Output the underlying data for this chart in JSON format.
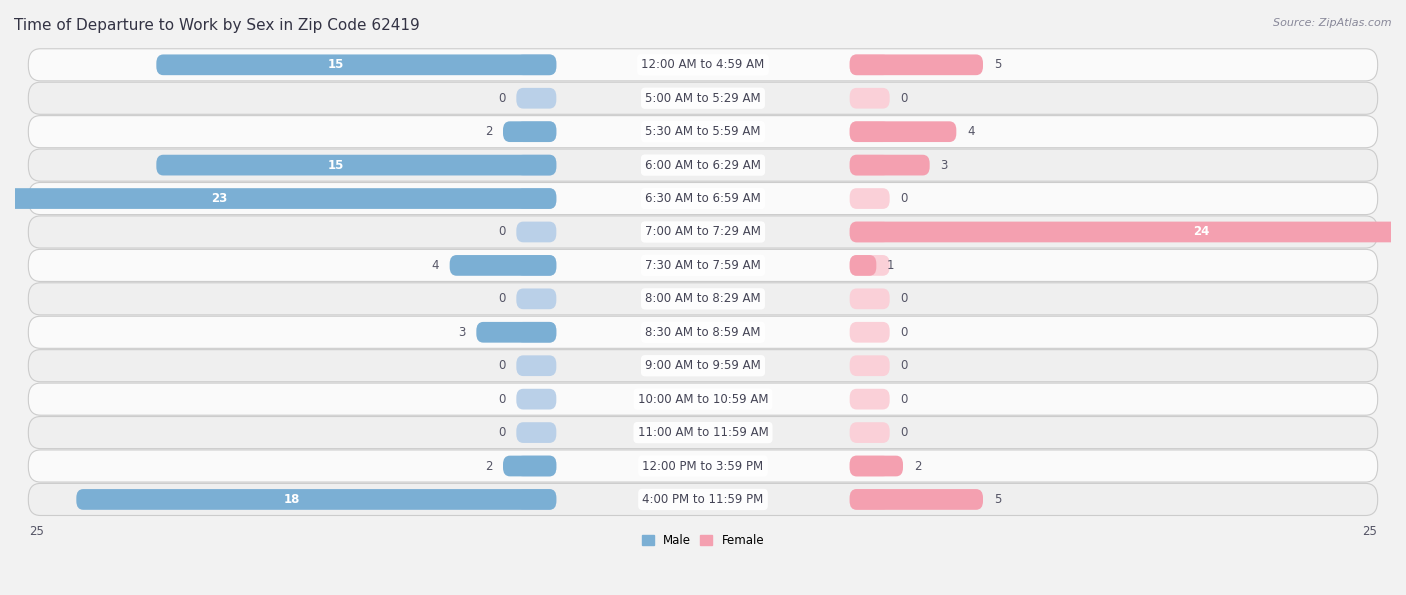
{
  "title": "Time of Departure to Work by Sex in Zip Code 62419",
  "source": "Source: ZipAtlas.com",
  "categories": [
    "12:00 AM to 4:59 AM",
    "5:00 AM to 5:29 AM",
    "5:30 AM to 5:59 AM",
    "6:00 AM to 6:29 AM",
    "6:30 AM to 6:59 AM",
    "7:00 AM to 7:29 AM",
    "7:30 AM to 7:59 AM",
    "8:00 AM to 8:29 AM",
    "8:30 AM to 8:59 AM",
    "9:00 AM to 9:59 AM",
    "10:00 AM to 10:59 AM",
    "11:00 AM to 11:59 AM",
    "12:00 PM to 3:59 PM",
    "4:00 PM to 11:59 PM"
  ],
  "male_values": [
    15,
    0,
    2,
    15,
    23,
    0,
    4,
    0,
    3,
    0,
    0,
    0,
    2,
    18
  ],
  "female_values": [
    5,
    0,
    4,
    3,
    0,
    24,
    1,
    0,
    0,
    0,
    0,
    0,
    2,
    5
  ],
  "male_color": "#7bafd4",
  "female_color": "#f4a0b0",
  "male_dark_color": "#5b8db8",
  "female_dark_color": "#e06080",
  "stub_male_color": "#bad0e8",
  "stub_female_color": "#fad0d8",
  "axis_max": 25,
  "bg_color": "#f2f2f2",
  "row_light": "#fafafa",
  "row_dark": "#efefef",
  "bar_height": 0.62,
  "title_fontsize": 11,
  "label_fontsize": 8.5,
  "value_fontsize": 8.5,
  "source_fontsize": 8
}
